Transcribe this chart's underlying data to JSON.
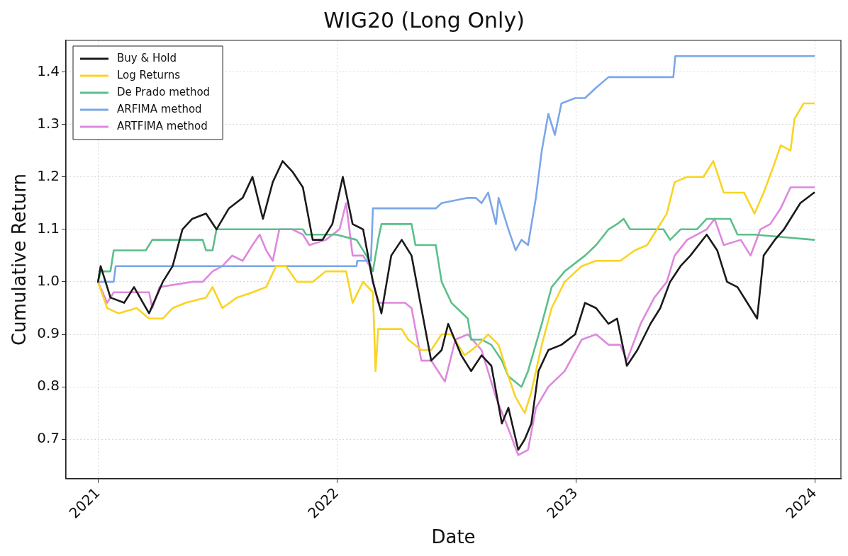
{
  "chart_data": {
    "type": "line",
    "title": "WIG20 (Long Only)",
    "xlabel": "Date",
    "ylabel": "Cumulative Return",
    "xlim": [
      "2020-11-13",
      "2024-02-10"
    ],
    "ylim": [
      0.625,
      1.46
    ],
    "xticks": [
      {
        "value": "2021-01-01",
        "label": "2021"
      },
      {
        "value": "2022-01-01",
        "label": "2022"
      },
      {
        "value": "2023-01-01",
        "label": "2023"
      },
      {
        "value": "2024-01-01",
        "label": "2024"
      }
    ],
    "yticks": [
      0.7,
      0.8,
      0.9,
      {
        "value": 1.0,
        "label": "1.0"
      },
      1.1,
      1.2,
      1.3,
      1.4
    ],
    "grid": true,
    "legend": "top left",
    "marker": "none",
    "line_style": "solid",
    "series": [
      {
        "name": "Buy & Hold",
        "color": "#1a1a1a",
        "x": [
          "2021-01-01",
          "2021-01-05",
          "2021-01-20",
          "2021-02-10",
          "2021-02-25",
          "2021-03-20",
          "2021-04-10",
          "2021-04-25",
          "2021-05-10",
          "2021-05-25",
          "2021-06-15",
          "2021-07-01",
          "2021-07-20",
          "2021-08-10",
          "2021-08-25",
          "2021-09-10",
          "2021-09-25",
          "2021-10-10",
          "2021-10-25",
          "2021-11-10",
          "2021-11-25",
          "2021-12-10",
          "2021-12-25",
          "2022-01-10",
          "2022-01-25",
          "2022-02-10",
          "2022-02-25",
          "2022-03-10",
          "2022-03-25",
          "2022-04-10",
          "2022-04-25",
          "2022-05-10",
          "2022-05-25",
          "2022-06-10",
          "2022-06-20",
          "2022-07-10",
          "2022-07-25",
          "2022-08-10",
          "2022-08-25",
          "2022-09-10",
          "2022-09-20",
          "2022-10-05",
          "2022-10-15",
          "2022-10-25",
          "2022-11-05",
          "2022-11-20",
          "2022-12-10",
          "2022-12-31",
          "2023-01-15",
          "2023-02-01",
          "2023-02-20",
          "2023-03-05",
          "2023-03-20",
          "2023-04-05",
          "2023-04-25",
          "2023-05-10",
          "2023-05-25",
          "2023-06-10",
          "2023-06-25",
          "2023-07-20",
          "2023-08-05",
          "2023-08-20",
          "2023-09-05",
          "2023-09-20",
          "2023-10-05",
          "2023-10-15",
          "2023-11-01",
          "2023-11-15",
          "2023-12-10",
          "2023-12-31"
        ],
        "values": [
          1.0,
          1.03,
          0.97,
          0.96,
          0.99,
          0.94,
          1.0,
          1.03,
          1.1,
          1.12,
          1.13,
          1.1,
          1.14,
          1.16,
          1.2,
          1.12,
          1.19,
          1.23,
          1.21,
          1.18,
          1.08,
          1.08,
          1.11,
          1.2,
          1.11,
          1.1,
          1.0,
          0.94,
          1.05,
          1.08,
          1.05,
          0.95,
          0.85,
          0.87,
          0.92,
          0.86,
          0.83,
          0.86,
          0.84,
          0.73,
          0.76,
          0.68,
          0.7,
          0.73,
          0.83,
          0.87,
          0.88,
          0.9,
          0.96,
          0.95,
          0.92,
          0.93,
          0.84,
          0.87,
          0.92,
          0.95,
          1.0,
          1.03,
          1.05,
          1.09,
          1.06,
          1.0,
          0.99,
          0.96,
          0.93,
          1.05,
          1.08,
          1.1,
          1.15,
          1.17
        ]
      },
      {
        "name": "Log Returns",
        "color": "#f9d423",
        "x": [
          "2021-01-01",
          "2021-01-15",
          "2021-02-01",
          "2021-03-01",
          "2021-03-20",
          "2021-04-10",
          "2021-04-25",
          "2021-05-15",
          "2021-06-15",
          "2021-06-25",
          "2021-07-10",
          "2021-08-01",
          "2021-08-25",
          "2021-09-15",
          "2021-09-30",
          "2021-10-15",
          "2021-11-01",
          "2021-11-25",
          "2021-12-15",
          "2022-01-15",
          "2022-01-25",
          "2022-02-10",
          "2022-02-25",
          "2022-03-01",
          "2022-03-05",
          "2022-04-10",
          "2022-04-20",
          "2022-05-10",
          "2022-05-25",
          "2022-06-10",
          "2022-06-25",
          "2022-07-15",
          "2022-08-05",
          "2022-08-20",
          "2022-09-05",
          "2022-09-20",
          "2022-10-01",
          "2022-10-15",
          "2022-10-25",
          "2022-11-10",
          "2022-11-25",
          "2022-12-15",
          "2023-01-10",
          "2023-02-01",
          "2023-02-20",
          "2023-03-10",
          "2023-04-01",
          "2023-04-20",
          "2023-05-05",
          "2023-05-20",
          "2023-06-01",
          "2023-06-20",
          "2023-07-15",
          "2023-07-30",
          "2023-08-15",
          "2023-09-15",
          "2023-10-01",
          "2023-10-15",
          "2023-10-30",
          "2023-11-10",
          "2023-11-25",
          "2023-12-01",
          "2023-12-15",
          "2023-12-31"
        ],
        "values": [
          1.0,
          0.95,
          0.94,
          0.95,
          0.93,
          0.93,
          0.95,
          0.96,
          0.97,
          0.99,
          0.95,
          0.97,
          0.98,
          0.99,
          1.03,
          1.03,
          1.0,
          1.0,
          1.02,
          1.02,
          0.96,
          1.0,
          0.98,
          0.83,
          0.91,
          0.91,
          0.89,
          0.87,
          0.87,
          0.9,
          0.9,
          0.86,
          0.88,
          0.9,
          0.88,
          0.82,
          0.78,
          0.75,
          0.79,
          0.88,
          0.95,
          1.0,
          1.03,
          1.04,
          1.04,
          1.04,
          1.06,
          1.07,
          1.1,
          1.13,
          1.19,
          1.2,
          1.2,
          1.23,
          1.17,
          1.17,
          1.13,
          1.17,
          1.22,
          1.26,
          1.25,
          1.31,
          1.34,
          1.34
        ]
      },
      {
        "name": "De Prado method",
        "color": "#5bbf8a",
        "x": [
          "2021-01-01",
          "2021-01-05",
          "2021-01-20",
          "2021-01-25",
          "2021-03-15",
          "2021-03-25",
          "2021-06-10",
          "2021-06-15",
          "2021-06-25",
          "2021-07-01",
          "2021-11-10",
          "2021-11-15",
          "2021-12-31",
          "2022-01-31",
          "2022-02-15",
          "2022-02-25",
          "2022-03-05",
          "2022-03-10",
          "2022-04-25",
          "2022-05-01",
          "2022-06-01",
          "2022-06-10",
          "2022-06-25",
          "2022-07-20",
          "2022-07-25",
          "2022-08-10",
          "2022-08-25",
          "2022-09-10",
          "2022-09-20",
          "2022-10-10",
          "2022-10-20",
          "2022-11-10",
          "2022-11-25",
          "2022-12-15",
          "2023-01-15",
          "2023-02-01",
          "2023-02-20",
          "2023-03-05",
          "2023-03-15",
          "2023-03-25",
          "2023-04-10",
          "2023-05-15",
          "2023-05-25",
          "2023-06-10",
          "2023-07-05",
          "2023-07-20",
          "2023-08-25",
          "2023-09-05",
          "2023-10-01",
          "2023-12-31"
        ],
        "values": [
          1.0,
          1.02,
          1.02,
          1.06,
          1.06,
          1.08,
          1.08,
          1.06,
          1.06,
          1.1,
          1.1,
          1.09,
          1.09,
          1.08,
          1.05,
          1.02,
          1.08,
          1.11,
          1.11,
          1.07,
          1.07,
          1.0,
          0.96,
          0.93,
          0.89,
          0.89,
          0.88,
          0.85,
          0.82,
          0.8,
          0.83,
          0.92,
          0.99,
          1.02,
          1.05,
          1.07,
          1.1,
          1.11,
          1.12,
          1.1,
          1.1,
          1.1,
          1.08,
          1.1,
          1.1,
          1.12,
          1.12,
          1.09,
          1.09,
          1.08
        ]
      },
      {
        "name": "ARFIMA method",
        "color": "#7ba7e8",
        "x": [
          "2021-01-01",
          "2021-01-25",
          "2021-01-28",
          "2022-01-31",
          "2022-02-01",
          "2022-02-22",
          "2022-02-25",
          "2022-03-10",
          "2022-06-01",
          "2022-06-10",
          "2022-07-20",
          "2022-08-01",
          "2022-08-10",
          "2022-08-20",
          "2022-09-01",
          "2022-09-05",
          "2022-09-20",
          "2022-10-01",
          "2022-10-10",
          "2022-10-20",
          "2022-11-01",
          "2022-11-10",
          "2022-11-20",
          "2022-11-30",
          "2022-12-10",
          "2022-12-31",
          "2023-01-15",
          "2023-02-01",
          "2023-02-20",
          "2023-05-30",
          "2023-06-02",
          "2023-12-31"
        ],
        "values": [
          1.0,
          1.0,
          1.03,
          1.03,
          1.04,
          1.04,
          1.14,
          1.14,
          1.14,
          1.15,
          1.16,
          1.16,
          1.15,
          1.17,
          1.11,
          1.16,
          1.1,
          1.06,
          1.08,
          1.07,
          1.16,
          1.25,
          1.32,
          1.28,
          1.34,
          1.35,
          1.35,
          1.37,
          1.39,
          1.39,
          1.43,
          1.43
        ]
      },
      {
        "name": "ARTFIMA method",
        "color": "#de88de",
        "x": [
          "2021-01-01",
          "2021-01-15",
          "2021-01-25",
          "2021-03-20",
          "2021-03-25",
          "2021-04-05",
          "2021-05-25",
          "2021-06-10",
          "2021-06-25",
          "2021-07-10",
          "2021-07-25",
          "2021-08-10",
          "2021-08-25",
          "2021-09-05",
          "2021-09-15",
          "2021-09-25",
          "2021-10-05",
          "2021-10-25",
          "2021-11-10",
          "2021-11-20",
          "2021-12-15",
          "2022-01-05",
          "2022-01-15",
          "2022-01-25",
          "2022-02-10",
          "2022-02-20",
          "2022-03-01",
          "2022-03-05",
          "2022-04-15",
          "2022-04-25",
          "2022-05-10",
          "2022-05-25",
          "2022-06-15",
          "2022-07-01",
          "2022-07-20",
          "2022-08-10",
          "2022-09-01",
          "2022-09-20",
          "2022-10-05",
          "2022-10-20",
          "2022-11-01",
          "2022-11-20",
          "2022-12-15",
          "2023-01-10",
          "2023-02-01",
          "2023-02-20",
          "2023-03-10",
          "2023-03-20",
          "2023-04-10",
          "2023-05-01",
          "2023-05-20",
          "2023-06-01",
          "2023-06-20",
          "2023-07-20",
          "2023-08-01",
          "2023-08-15",
          "2023-09-10",
          "2023-09-25",
          "2023-10-10",
          "2023-10-25",
          "2023-11-10",
          "2023-11-25",
          "2023-12-31"
        ],
        "values": [
          1.0,
          0.96,
          0.98,
          0.98,
          0.95,
          0.99,
          1.0,
          1.0,
          1.02,
          1.03,
          1.05,
          1.04,
          1.07,
          1.09,
          1.06,
          1.04,
          1.1,
          1.1,
          1.09,
          1.07,
          1.08,
          1.1,
          1.15,
          1.05,
          1.05,
          1.03,
          0.98,
          0.96,
          0.96,
          0.95,
          0.85,
          0.85,
          0.81,
          0.89,
          0.9,
          0.87,
          0.78,
          0.72,
          0.67,
          0.68,
          0.76,
          0.8,
          0.83,
          0.89,
          0.9,
          0.88,
          0.88,
          0.85,
          0.92,
          0.97,
          1.0,
          1.05,
          1.08,
          1.1,
          1.12,
          1.07,
          1.08,
          1.05,
          1.1,
          1.11,
          1.14,
          1.18,
          1.18
        ]
      }
    ]
  }
}
